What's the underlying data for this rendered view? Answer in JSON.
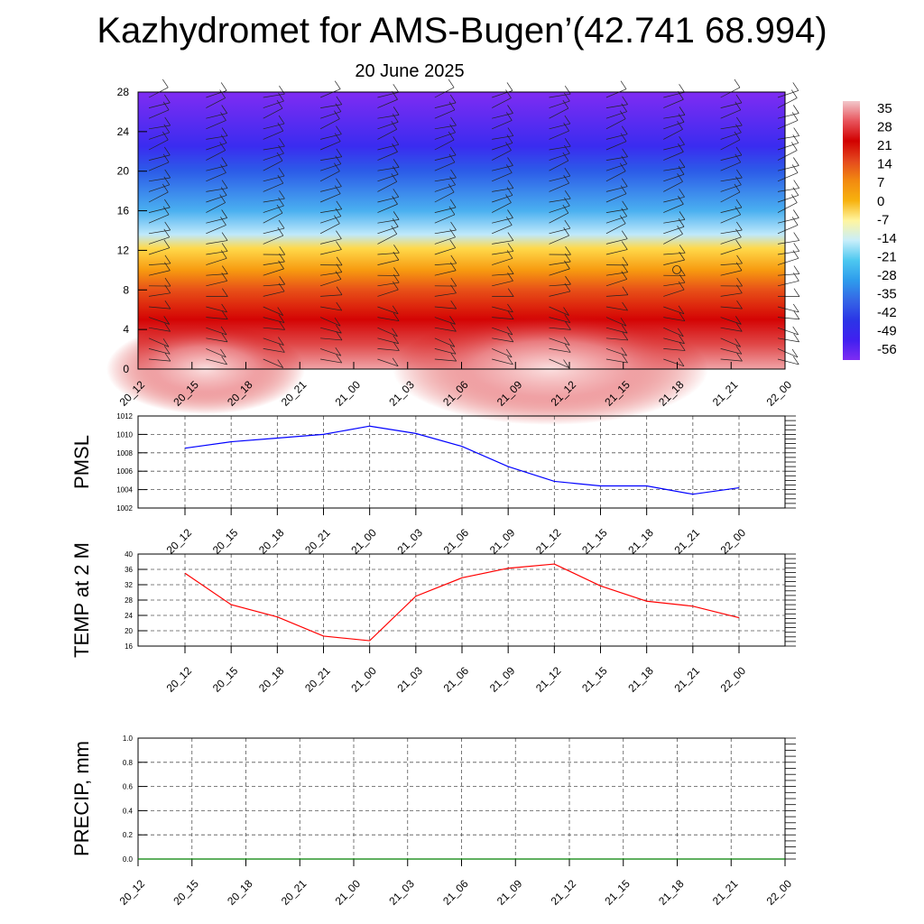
{
  "title": "Kazhydromet for AMS-Bugen’(42.741 68.994)",
  "subtitle": "20 June 2025",
  "chart_data": [
    {
      "type": "heatmap",
      "panel": "cross-section",
      "x_ticks": [
        "20_12",
        "20_15",
        "20_18",
        "20_21",
        "21_00",
        "21_03",
        "21_06",
        "21_09",
        "21_12",
        "21_15",
        "21_18",
        "21_21",
        "22_00"
      ],
      "y_ticks": [
        "0",
        "4",
        "8",
        "12",
        "16",
        "20",
        "24",
        "28"
      ],
      "ylim": [
        0,
        28
      ],
      "colorbar_labels": [
        "35",
        "28",
        "21",
        "14",
        "7",
        "0",
        "-7",
        "-14",
        "-21",
        "-28",
        "-35",
        "-42",
        "-49",
        "-56"
      ],
      "colorbar_range": [
        -56,
        35
      ],
      "colors": [
        "#f2c8cc",
        "#e8545c",
        "#d10000",
        "#e4481e",
        "#f28a10",
        "#f7b20e",
        "#fff5a0",
        "#c8eefa",
        "#4dc8f0",
        "#2e9cec",
        "#3566e6",
        "#2b35e6",
        "#4020f0",
        "#7f2cf2"
      ],
      "contour_colors": [
        "#7f2cf2",
        "#3a2cf0",
        "#2c5ce8",
        "#4ab0f0",
        "#bfe9fb",
        "#ffd94a",
        "#f79a10",
        "#e85018",
        "#d40404",
        "#e04848",
        "#f0a4a8"
      ],
      "contour_levels_m": [
        28,
        22.5,
        20,
        16,
        13.6,
        12.2,
        10,
        8,
        5,
        2.5,
        0
      ],
      "wind_barbs": true
    },
    {
      "type": "line",
      "ylabel": "PMSL",
      "x": [
        "20_12",
        "20_15",
        "20_18",
        "20_21",
        "21_00",
        "21_03",
        "21_06",
        "21_09",
        "21_12",
        "21_15",
        "21_18",
        "21_21",
        "22_00"
      ],
      "y_ticks": [
        "1002",
        "1004",
        "1006",
        "1008",
        "1010",
        "1012"
      ],
      "ylim": [
        1002,
        1012
      ],
      "series": [
        {
          "values": [
            1008.5,
            1009.2,
            1009.6,
            1010.0,
            1010.9,
            1010.1,
            1008.7,
            1006.5,
            1004.9,
            1004.4,
            1004.4,
            1003.5,
            1004.2
          ],
          "color": "#0000ff"
        }
      ],
      "grid": true
    },
    {
      "type": "line",
      "ylabel": "TEMP at 2 M",
      "x": [
        "20_12",
        "20_15",
        "20_18",
        "20_21",
        "21_00",
        "21_03",
        "21_06",
        "21_09",
        "21_12",
        "21_15",
        "21_18",
        "21_21",
        "22_00"
      ],
      "y_ticks": [
        "16",
        "20",
        "24",
        "28",
        "32",
        "36",
        "40"
      ],
      "ylim": [
        16,
        40
      ],
      "series": [
        {
          "values": [
            35.0,
            26.8,
            23.6,
            18.6,
            17.4,
            29.0,
            33.8,
            36.3,
            37.4,
            31.7,
            27.7,
            26.4,
            23.4
          ],
          "color": "#ff0000"
        }
      ],
      "grid": true
    },
    {
      "type": "line",
      "ylabel": "PRECIP, mm",
      "x": [
        "20_12",
        "20_15",
        "20_18",
        "20_21",
        "21_00",
        "21_03",
        "21_06",
        "21_09",
        "21_12",
        "21_15",
        "21_18",
        "21_21",
        "22_00"
      ],
      "y_ticks": [
        "0.0",
        "0.2",
        "0.4",
        "0.6",
        "0.8",
        "1.0"
      ],
      "ylim": [
        0,
        1
      ],
      "series": [
        {
          "values": [
            0,
            0,
            0,
            0,
            0,
            0,
            0,
            0,
            0,
            0,
            0,
            0,
            0
          ],
          "color": "#008000"
        }
      ],
      "grid": true
    }
  ]
}
